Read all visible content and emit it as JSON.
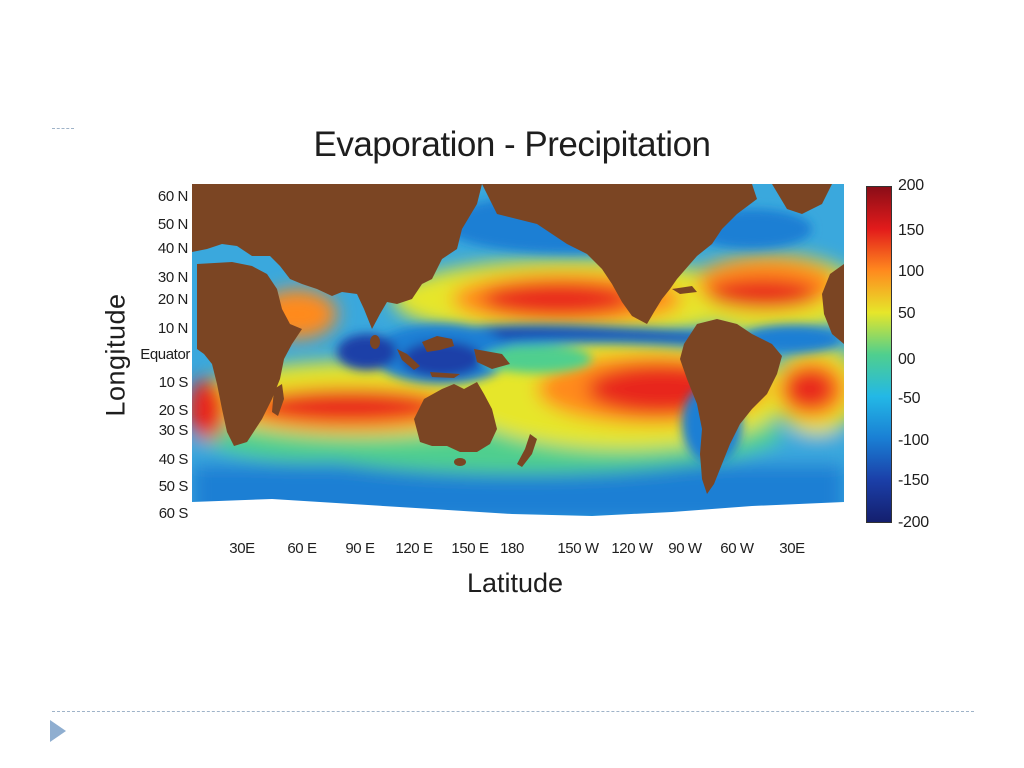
{
  "title": "Evaporation - Precipitation",
  "y_axis_title": "Longitude",
  "x_axis_title": "Latitude",
  "lat_ticks": [
    "60 N",
    "50 N",
    "40 N",
    "30 N",
    "20 N",
    "10 N",
    "Equator",
    "10 S",
    "20 S",
    "30 S",
    "40 S",
    "50 S",
    "60 S"
  ],
  "lon_ticks": [
    "30E",
    "60 E",
    "90 E",
    "120 E",
    "150 E",
    "180",
    "150 W",
    "120 W",
    "90 W",
    "60 W",
    "30E"
  ],
  "colorbar": {
    "ticks": [
      "200",
      "150",
      "100",
      "50",
      "00",
      "-50",
      "-100",
      "-150",
      "-200"
    ],
    "colors": [
      "#8b0d17",
      "#e21b1b",
      "#ff8a1e",
      "#e6e62a",
      "#4fcf8e",
      "#23b8e6",
      "#1a7fd4",
      "#1b3fa8",
      "#141f6e"
    ]
  },
  "map_colors": {
    "land": "#7b4523",
    "ocean_base": "#3aa8dd",
    "high_positive": "#e8261c",
    "mid_positive": "#ff8a1e",
    "low_positive": "#e6e62a",
    "neutral": "#4fcf8e",
    "negative": "#1a7fd4",
    "strong_negative": "#1b3fa8"
  }
}
